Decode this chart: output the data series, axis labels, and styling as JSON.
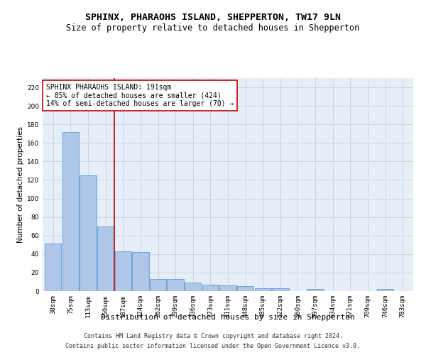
{
  "title": "SPHINX, PHARAOHS ISLAND, SHEPPERTON, TW17 9LN",
  "subtitle": "Size of property relative to detached houses in Shepperton",
  "xlabel": "Distribution of detached houses by size in Shepperton",
  "ylabel": "Number of detached properties",
  "categories": [
    "38sqm",
    "75sqm",
    "113sqm",
    "150sqm",
    "187sqm",
    "224sqm",
    "262sqm",
    "299sqm",
    "336sqm",
    "373sqm",
    "411sqm",
    "448sqm",
    "485sqm",
    "522sqm",
    "560sqm",
    "597sqm",
    "634sqm",
    "671sqm",
    "709sqm",
    "746sqm",
    "783sqm"
  ],
  "values": [
    51,
    172,
    125,
    70,
    43,
    42,
    13,
    13,
    9,
    7,
    6,
    5,
    3,
    3,
    0,
    2,
    0,
    0,
    0,
    2,
    0
  ],
  "bar_color": "#aec6e8",
  "bar_edge_color": "#5b9bd5",
  "property_label": "SPHINX PHARAOHS ISLAND: 191sqm",
  "annotation_line1": "← 85% of detached houses are smaller (424)",
  "annotation_line2": "14% of semi-detached houses are larger (70) →",
  "vline_pos": 3.5,
  "vline_color": "#cc0000",
  "ylim": [
    0,
    230
  ],
  "yticks": [
    0,
    20,
    40,
    60,
    80,
    100,
    120,
    140,
    160,
    180,
    200,
    220
  ],
  "annotation_box_color": "#ffffff",
  "annotation_box_edge": "#cc0000",
  "footer1": "Contains HM Land Registry data © Crown copyright and database right 2024.",
  "footer2": "Contains public sector information licensed under the Open Government Licence v3.0.",
  "plot_bg_color": "#e8eef7",
  "background_color": "#ffffff",
  "grid_color": "#c8d4e8",
  "title_fontsize": 9.5,
  "subtitle_fontsize": 8.5,
  "ylabel_fontsize": 7.5,
  "xlabel_fontsize": 8,
  "tick_fontsize": 6.5,
  "annotation_fontsize": 7,
  "footer_fontsize": 6
}
